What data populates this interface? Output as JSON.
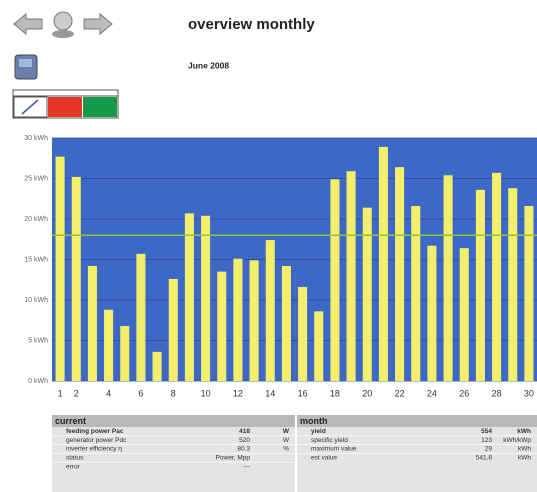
{
  "header": {
    "title": "overview monthly",
    "subtitle": "June 2008"
  },
  "chart_data": {
    "type": "bar",
    "categories": [
      "1",
      "2",
      null,
      "4",
      null,
      "6",
      null,
      "8",
      null,
      "10",
      null,
      "12",
      null,
      "14",
      null,
      "16",
      null,
      "18",
      null,
      "20",
      null,
      "22",
      null,
      "24",
      null,
      "26",
      null,
      "28",
      null,
      "30"
    ],
    "values": [
      27.7,
      25.2,
      14.2,
      8.8,
      6.8,
      15.7,
      3.6,
      12.6,
      20.7,
      20.4,
      13.5,
      15.1,
      14.9,
      17.4,
      14.2,
      11.6,
      8.6,
      24.9,
      25.9,
      21.4,
      28.9,
      26.4,
      21.6,
      16.7,
      25.4,
      16.4,
      23.6,
      25.7,
      23.8,
      21.6
    ],
    "color": "#f4ef6a",
    "background": "#3d68c6",
    "average": 18,
    "average_color": "#8cc63f",
    "ylim": [
      0,
      30
    ],
    "yticks": [
      {
        "value": 0,
        "label": "0 kWh"
      },
      {
        "value": 5,
        "label": "5 kWh"
      },
      {
        "value": 10,
        "label": "10 kWh"
      },
      {
        "value": 15,
        "label": "15 kWh"
      },
      {
        "value": 20,
        "label": "20 kWh"
      },
      {
        "value": 25,
        "label": "25 kWh"
      },
      {
        "value": 30,
        "label": "30 kWh"
      }
    ],
    "grid": true
  },
  "tables": [
    {
      "title": "current",
      "rows": [
        [
          "feeding power Pac",
          "418",
          "W"
        ],
        [
          "generator power Pdc",
          "520",
          "W"
        ],
        [
          "inverter efficiency η",
          "80.3",
          "%"
        ],
        [
          "status",
          "Power, Mpp"
        ],
        [
          "error",
          "---"
        ]
      ]
    },
    {
      "title": "month",
      "rows": [
        [
          "yield",
          "554",
          "kWh"
        ],
        [
          "specific yield",
          "123",
          "kWh/kWp"
        ],
        [
          "maximum value",
          "29",
          "kWh"
        ],
        [
          "est value",
          "541.8",
          "kWh"
        ]
      ]
    }
  ]
}
